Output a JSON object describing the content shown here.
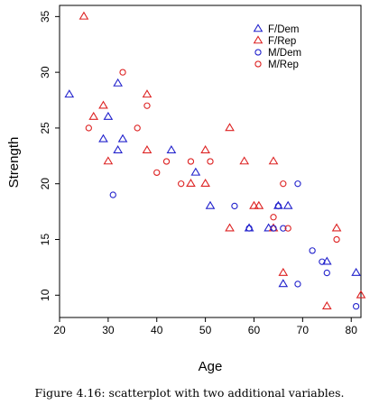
{
  "caption": "Figure 4.16: scatterplot with two additional variables.",
  "chart_data": {
    "type": "scatter",
    "xlabel": "Age",
    "ylabel": "Strength",
    "xlim": [
      20,
      82
    ],
    "ylim": [
      8,
      36
    ],
    "x_ticks": [
      20,
      30,
      40,
      50,
      60,
      70,
      80
    ],
    "y_ticks": [
      10,
      15,
      20,
      25,
      30,
      35
    ],
    "grid": false,
    "legend_position": "top-right",
    "series": [
      {
        "name": "F/Dem",
        "color": "#2222cc",
        "marker": "triangle",
        "points": [
          [
            22,
            28
          ],
          [
            29,
            24
          ],
          [
            30,
            26
          ],
          [
            32,
            29
          ],
          [
            33,
            24
          ],
          [
            32,
            23
          ],
          [
            43,
            23
          ],
          [
            48,
            21
          ],
          [
            51,
            18
          ],
          [
            59,
            16
          ],
          [
            63,
            16
          ],
          [
            65,
            18
          ],
          [
            66,
            11
          ],
          [
            67,
            18
          ],
          [
            75,
            13
          ],
          [
            81,
            12
          ]
        ]
      },
      {
        "name": "F/Rep",
        "color": "#dd2222",
        "marker": "triangle",
        "points": [
          [
            25,
            35
          ],
          [
            27,
            26
          ],
          [
            29,
            27
          ],
          [
            30,
            22
          ],
          [
            38,
            28
          ],
          [
            38,
            23
          ],
          [
            47,
            20
          ],
          [
            50,
            20
          ],
          [
            50,
            23
          ],
          [
            55,
            25
          ],
          [
            55,
            16
          ],
          [
            58,
            22
          ],
          [
            60,
            18
          ],
          [
            61,
            18
          ],
          [
            64,
            22
          ],
          [
            64,
            16
          ],
          [
            66,
            12
          ],
          [
            75,
            9
          ],
          [
            77,
            16
          ],
          [
            82,
            10
          ]
        ]
      },
      {
        "name": "M/Dem",
        "color": "#2222cc",
        "marker": "circle",
        "points": [
          [
            31,
            19
          ],
          [
            56,
            18
          ],
          [
            59,
            16
          ],
          [
            64,
            16
          ],
          [
            65,
            18
          ],
          [
            66,
            16
          ],
          [
            69,
            20
          ],
          [
            69,
            11
          ],
          [
            72,
            14
          ],
          [
            74,
            13
          ],
          [
            75,
            12
          ],
          [
            81,
            9
          ]
        ]
      },
      {
        "name": "M/Rep",
        "color": "#dd2222",
        "marker": "circle",
        "points": [
          [
            26,
            25
          ],
          [
            33,
            30
          ],
          [
            36,
            25
          ],
          [
            38,
            27
          ],
          [
            40,
            21
          ],
          [
            42,
            22
          ],
          [
            45,
            20
          ],
          [
            47,
            22
          ],
          [
            51,
            22
          ],
          [
            64,
            17
          ],
          [
            66,
            20
          ],
          [
            67,
            16
          ],
          [
            77,
            15
          ]
        ]
      }
    ]
  }
}
